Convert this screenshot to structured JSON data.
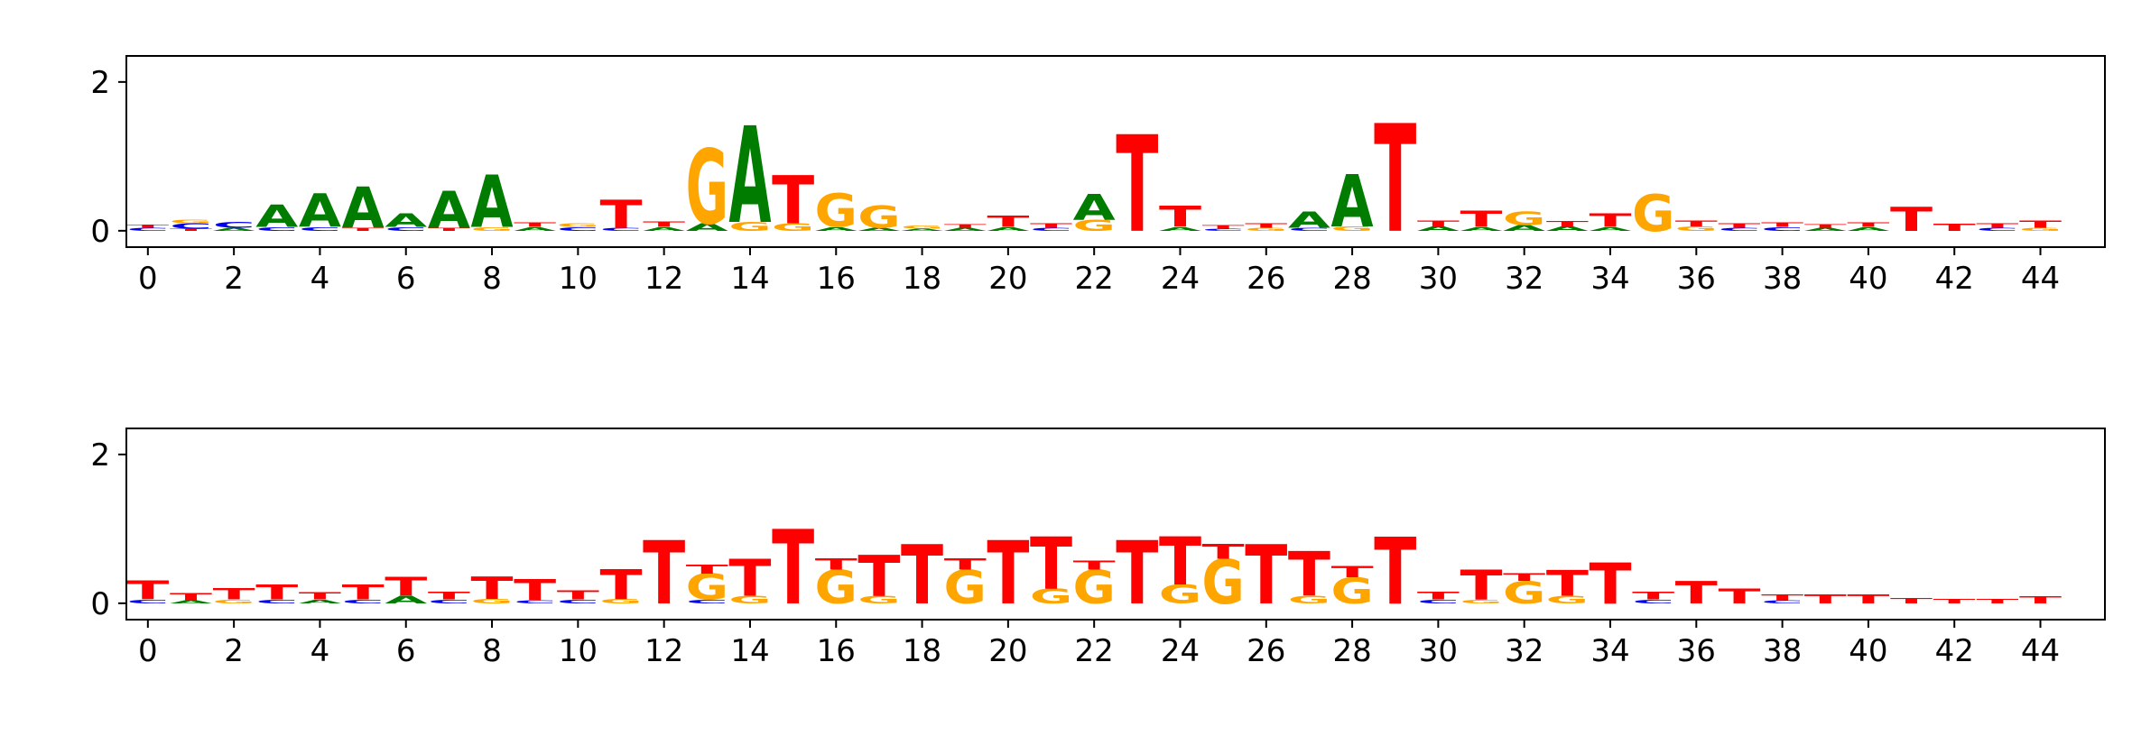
{
  "figure": {
    "background": "#ffffff"
  },
  "chart_data": [
    {
      "type": "sequence-logo",
      "panel": "top",
      "title": "",
      "xlabel": "",
      "ylabel": "",
      "xlim": [
        -0.5,
        45.5
      ],
      "ylim": [
        -0.22,
        2.35
      ],
      "x_ticks": [
        0,
        2,
        4,
        6,
        8,
        10,
        12,
        14,
        16,
        18,
        20,
        22,
        24,
        26,
        28,
        30,
        32,
        34,
        36,
        38,
        40,
        42,
        44
      ],
      "y_ticks": [
        0,
        2
      ],
      "grid": false,
      "legend": "none",
      "colors": {
        "A": "#007d00",
        "C": "#0000ee",
        "G": "#ffa500",
        "T": "#ff0000"
      },
      "stacks": [
        [
          [
            "C",
            0.04
          ],
          [
            "T",
            0.04
          ]
        ],
        [
          [
            "T",
            0.03
          ],
          [
            "C",
            0.07
          ],
          [
            "G",
            0.05
          ]
        ],
        [
          [
            "A",
            0.04
          ],
          [
            "C",
            0.08
          ]
        ],
        [
          [
            "C",
            0.05
          ],
          [
            "A",
            0.3
          ]
        ],
        [
          [
            "C",
            0.05
          ],
          [
            "A",
            0.45
          ]
        ],
        [
          [
            "T",
            0.04
          ],
          [
            "A",
            0.55
          ]
        ],
        [
          [
            "C",
            0.05
          ],
          [
            "A",
            0.18
          ]
        ],
        [
          [
            "T",
            0.04
          ],
          [
            "A",
            0.5
          ]
        ],
        [
          [
            "G",
            0.05
          ],
          [
            "A",
            0.7
          ]
        ],
        [
          [
            "A",
            0.05
          ],
          [
            "T",
            0.06
          ]
        ],
        [
          [
            "C",
            0.05
          ],
          [
            "G",
            0.05
          ]
        ],
        [
          [
            "C",
            0.04
          ],
          [
            "T",
            0.38
          ]
        ],
        [
          [
            "A",
            0.05
          ],
          [
            "T",
            0.07
          ]
        ],
        [
          [
            "A",
            0.1
          ],
          [
            "G",
            1.0
          ]
        ],
        [
          [
            "G",
            0.12
          ],
          [
            "A",
            1.3
          ]
        ],
        [
          [
            "G",
            0.1
          ],
          [
            "T",
            0.65
          ]
        ],
        [
          [
            "A",
            0.05
          ],
          [
            "G",
            0.45
          ]
        ],
        [
          [
            "A",
            0.04
          ],
          [
            "G",
            0.3
          ]
        ],
        [
          [
            "A",
            0.03
          ],
          [
            "G",
            0.04
          ]
        ],
        [
          [
            "A",
            0.04
          ],
          [
            "T",
            0.05
          ]
        ],
        [
          [
            "A",
            0.05
          ],
          [
            "T",
            0.15
          ]
        ],
        [
          [
            "C",
            0.04
          ],
          [
            "T",
            0.06
          ]
        ],
        [
          [
            "G",
            0.15
          ],
          [
            "A",
            0.35
          ]
        ],
        [
          [
            "T",
            1.3
          ]
        ],
        [
          [
            "A",
            0.05
          ],
          [
            "T",
            0.28
          ]
        ],
        [
          [
            "C",
            0.03
          ],
          [
            "T",
            0.05
          ]
        ],
        [
          [
            "G",
            0.04
          ],
          [
            "T",
            0.06
          ]
        ],
        [
          [
            "C",
            0.04
          ],
          [
            "A",
            0.22
          ]
        ],
        [
          [
            "G",
            0.06
          ],
          [
            "A",
            0.7
          ]
        ],
        [
          [
            "T",
            1.45
          ]
        ],
        [
          [
            "A",
            0.06
          ],
          [
            "T",
            0.08
          ]
        ],
        [
          [
            "A",
            0.05
          ],
          [
            "T",
            0.22
          ]
        ],
        [
          [
            "A",
            0.08
          ],
          [
            "G",
            0.18
          ]
        ],
        [
          [
            "A",
            0.06
          ],
          [
            "T",
            0.07
          ]
        ],
        [
          [
            "A",
            0.05
          ],
          [
            "T",
            0.18
          ]
        ],
        [
          [
            "G",
            0.5
          ]
        ],
        [
          [
            "G",
            0.06
          ],
          [
            "T",
            0.08
          ]
        ],
        [
          [
            "C",
            0.04
          ],
          [
            "T",
            0.06
          ]
        ],
        [
          [
            "C",
            0.05
          ],
          [
            "T",
            0.06
          ]
        ],
        [
          [
            "A",
            0.04
          ],
          [
            "T",
            0.05
          ]
        ],
        [
          [
            "A",
            0.05
          ],
          [
            "T",
            0.06
          ]
        ],
        [
          [
            "T",
            0.32
          ]
        ],
        [
          [
            "T",
            0.09
          ]
        ],
        [
          [
            "C",
            0.04
          ],
          [
            "T",
            0.06
          ]
        ],
        [
          [
            "G",
            0.04
          ],
          [
            "T",
            0.09
          ]
        ]
      ]
    },
    {
      "type": "sequence-logo",
      "panel": "bottom",
      "title": "",
      "xlabel": "",
      "ylabel": "",
      "xlim": [
        -0.5,
        45.5
      ],
      "ylim": [
        -0.22,
        2.35
      ],
      "x_ticks": [
        0,
        2,
        4,
        6,
        8,
        10,
        12,
        14,
        16,
        18,
        20,
        22,
        24,
        26,
        28,
        30,
        32,
        34,
        36,
        38,
        40,
        42,
        44
      ],
      "y_ticks": [
        0,
        2
      ],
      "grid": false,
      "legend": "none",
      "colors": {
        "A": "#007d00",
        "C": "#0000ee",
        "G": "#ffa500",
        "T": "#ff0000"
      },
      "stacks": [
        [
          [
            "C",
            0.05
          ],
          [
            "T",
            0.25
          ]
        ],
        [
          [
            "A",
            0.04
          ],
          [
            "T",
            0.09
          ]
        ],
        [
          [
            "G",
            0.05
          ],
          [
            "T",
            0.15
          ]
        ],
        [
          [
            "C",
            0.05
          ],
          [
            "T",
            0.2
          ]
        ],
        [
          [
            "A",
            0.05
          ],
          [
            "T",
            0.09
          ]
        ],
        [
          [
            "C",
            0.05
          ],
          [
            "T",
            0.2
          ]
        ],
        [
          [
            "A",
            0.1
          ],
          [
            "T",
            0.25
          ]
        ],
        [
          [
            "C",
            0.05
          ],
          [
            "T",
            0.1
          ]
        ],
        [
          [
            "G",
            0.06
          ],
          [
            "T",
            0.3
          ]
        ],
        [
          [
            "C",
            0.04
          ],
          [
            "T",
            0.28
          ]
        ],
        [
          [
            "C",
            0.05
          ],
          [
            "T",
            0.12
          ]
        ],
        [
          [
            "G",
            0.06
          ],
          [
            "T",
            0.4
          ]
        ],
        [
          [
            "T",
            0.85
          ]
        ],
        [
          [
            "C",
            0.05
          ],
          [
            "G",
            0.35
          ],
          [
            "T",
            0.12
          ]
        ],
        [
          [
            "G",
            0.1
          ],
          [
            "T",
            0.5
          ]
        ],
        [
          [
            "T",
            1.0
          ]
        ],
        [
          [
            "G",
            0.45
          ],
          [
            "T",
            0.15
          ]
        ],
        [
          [
            "G",
            0.1
          ],
          [
            "T",
            0.55
          ]
        ],
        [
          [
            "T",
            0.8
          ]
        ],
        [
          [
            "G",
            0.45
          ],
          [
            "T",
            0.15
          ]
        ],
        [
          [
            "T",
            0.85
          ]
        ],
        [
          [
            "G",
            0.2
          ],
          [
            "T",
            0.7
          ]
        ],
        [
          [
            "G",
            0.45
          ],
          [
            "T",
            0.12
          ]
        ],
        [
          [
            "T",
            0.85
          ]
        ],
        [
          [
            "G",
            0.25
          ],
          [
            "T",
            0.65
          ]
        ],
        [
          [
            "G",
            0.6
          ],
          [
            "T",
            0.2
          ]
        ],
        [
          [
            "T",
            0.8
          ]
        ],
        [
          [
            "G",
            0.1
          ],
          [
            "T",
            0.6
          ]
        ],
        [
          [
            "G",
            0.35
          ],
          [
            "T",
            0.15
          ]
        ],
        [
          [
            "T",
            0.9
          ]
        ],
        [
          [
            "C",
            0.05
          ],
          [
            "T",
            0.1
          ]
        ],
        [
          [
            "G",
            0.05
          ],
          [
            "T",
            0.4
          ]
        ],
        [
          [
            "G",
            0.3
          ],
          [
            "T",
            0.1
          ]
        ],
        [
          [
            "G",
            0.1
          ],
          [
            "T",
            0.35
          ]
        ],
        [
          [
            "T",
            0.55
          ]
        ],
        [
          [
            "C",
            0.05
          ],
          [
            "T",
            0.1
          ]
        ],
        [
          [
            "T",
            0.3
          ]
        ],
        [
          [
            "T",
            0.2
          ]
        ],
        [
          [
            "C",
            0.04
          ],
          [
            "T",
            0.08
          ]
        ],
        [
          [
            "T",
            0.12
          ]
        ],
        [
          [
            "T",
            0.12
          ]
        ],
        [
          [
            "T",
            0.07
          ]
        ],
        [
          [
            "T",
            0.06
          ]
        ],
        [
          [
            "T",
            0.06
          ]
        ],
        [
          [
            "T",
            0.09
          ]
        ]
      ]
    }
  ]
}
